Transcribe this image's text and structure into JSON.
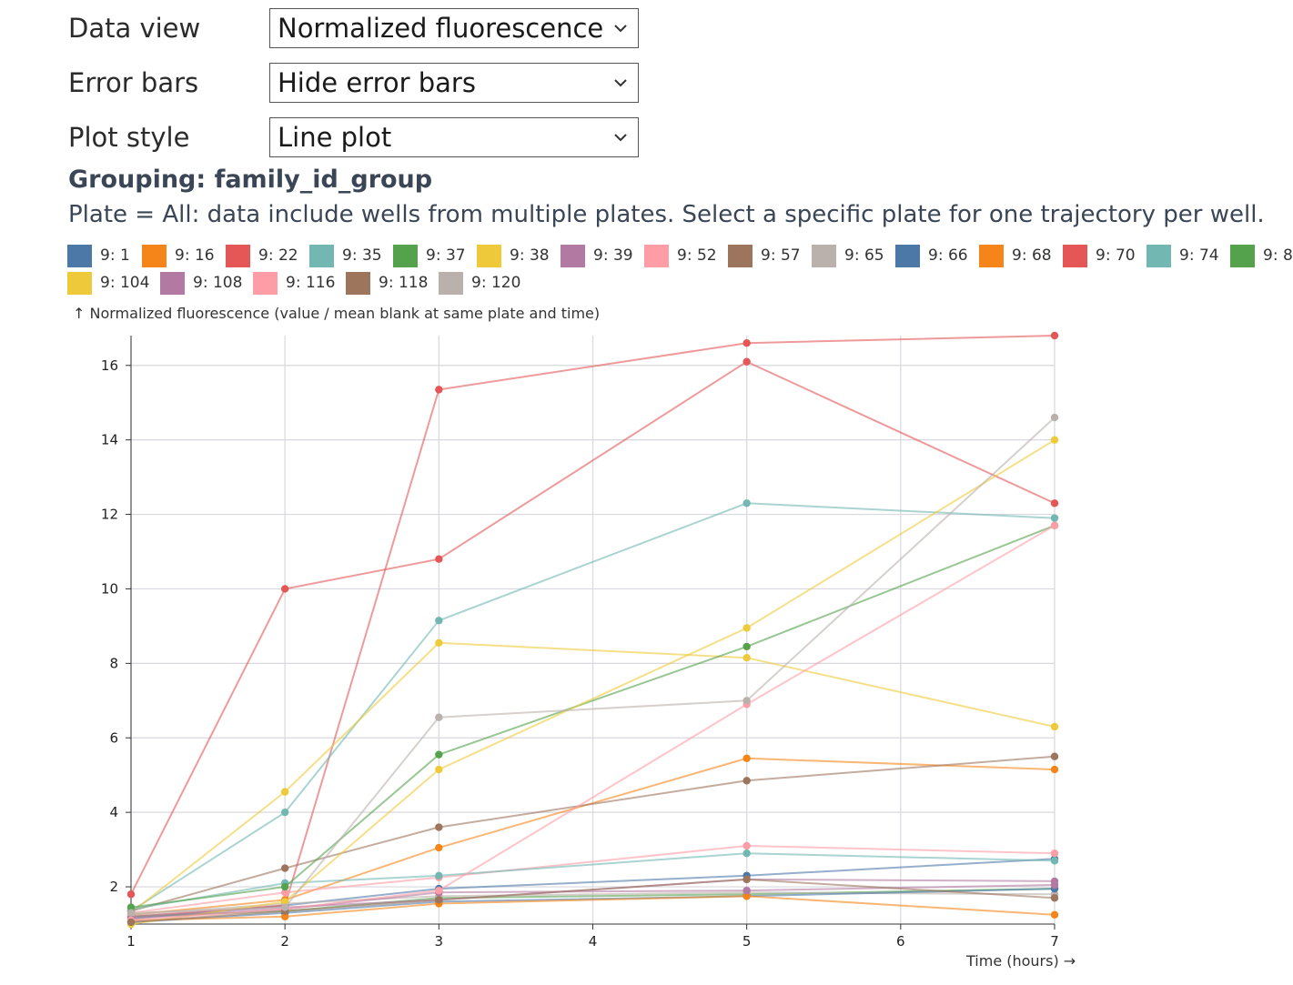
{
  "controls": [
    {
      "label": "Data view",
      "value": "Normalized fluorescence"
    },
    {
      "label": "Error bars",
      "value": "Hide error bars"
    },
    {
      "label": "Plot style",
      "value": "Line plot"
    }
  ],
  "grouping_title": "Grouping: family_id_group",
  "plate_note": "Plate = All: data include wells from multiple plates. Select a specific plate for one trajectory per well.",
  "chart_data": {
    "type": "line",
    "title": "",
    "ylabel": "↑ Normalized fluorescence (value / mean blank at same plate and time)",
    "xlabel": "Time (hours) →",
    "x_ticks": [
      1,
      2,
      3,
      4,
      5,
      6,
      7
    ],
    "y_ticks": [
      2,
      4,
      6,
      8,
      10,
      12,
      14,
      16
    ],
    "xlim": [
      1,
      7
    ],
    "ylim": [
      1,
      16.8
    ],
    "grid": true,
    "legend_position": "top",
    "series": [
      {
        "name": "9: 1",
        "color": "#4c78a8",
        "x": [
          1,
          2,
          3,
          5,
          7
        ],
        "values": [
          1.15,
          1.5,
          1.95,
          2.3,
          2.75
        ]
      },
      {
        "name": "9: 16",
        "color": "#f58518",
        "x": [
          1,
          2,
          3,
          5,
          7
        ],
        "values": [
          1.25,
          1.65,
          3.05,
          5.45,
          5.15
        ]
      },
      {
        "name": "9: 22",
        "color": "#e45756",
        "x": [
          1,
          2,
          3,
          5,
          7
        ],
        "values": [
          1.2,
          1.5,
          15.35,
          16.6,
          16.8
        ]
      },
      {
        "name": "9: 35",
        "color": "#72b7b2",
        "x": [
          1,
          2,
          3,
          5,
          7
        ],
        "values": [
          1.35,
          4.0,
          9.15,
          12.3,
          11.9
        ]
      },
      {
        "name": "9: 37",
        "color": "#54a24b",
        "x": [
          1,
          2,
          3,
          5,
          7
        ],
        "values": [
          1.2,
          1.35,
          1.7,
          1.8,
          1.95
        ]
      },
      {
        "name": "9: 38",
        "color": "#eeca3b",
        "x": [
          1,
          2,
          3,
          5,
          7
        ],
        "values": [
          1.3,
          4.55,
          8.55,
          8.15,
          6.3
        ]
      },
      {
        "name": "9: 39",
        "color": "#b279a2",
        "x": [
          1,
          2,
          3,
          5,
          7
        ],
        "values": [
          1.2,
          1.45,
          1.65,
          2.2,
          2.15
        ]
      },
      {
        "name": "9: 52",
        "color": "#ff9da6",
        "x": [
          1,
          2,
          3,
          5,
          7
        ],
        "values": [
          1.3,
          1.85,
          2.25,
          3.1,
          2.9
        ]
      },
      {
        "name": "9: 57",
        "color": "#9d755d",
        "x": [
          1,
          2,
          3,
          5,
          7
        ],
        "values": [
          1.35,
          2.5,
          3.6,
          4.85,
          5.5
        ]
      },
      {
        "name": "9: 65",
        "color": "#bab0ac",
        "x": [
          1,
          2,
          3,
          5,
          7
        ],
        "values": [
          1.25,
          1.55,
          1.75,
          1.85,
          1.8
        ]
      },
      {
        "name": "9: 66",
        "color": "#4c78a8",
        "x": [
          1,
          2,
          3,
          5,
          7
        ],
        "values": [
          1.05,
          1.3,
          1.6,
          1.75,
          1.95
        ]
      },
      {
        "name": "9: 68",
        "color": "#f58518",
        "x": [
          1,
          2,
          3,
          5,
          7
        ],
        "values": [
          1.1,
          1.2,
          1.55,
          1.75,
          1.25
        ]
      },
      {
        "name": "9: 70",
        "color": "#e45756",
        "x": [
          1,
          2,
          3,
          5,
          7
        ],
        "values": [
          1.8,
          10.0,
          10.8,
          16.1,
          12.3
        ]
      },
      {
        "name": "9: 74",
        "color": "#72b7b2",
        "x": [
          1,
          2,
          3,
          5,
          7
        ],
        "values": [
          1.4,
          2.1,
          2.3,
          2.9,
          2.7
        ]
      },
      {
        "name": "9: 8",
        "color": "#54a24b",
        "x": [
          1,
          2,
          3,
          5,
          7
        ],
        "values": [
          1.45,
          2.0,
          5.55,
          8.45,
          11.7
        ]
      },
      {
        "name": "9: 104",
        "color": "#eeca3b",
        "x": [
          1,
          2,
          3,
          5,
          7
        ],
        "values": [
          1.0,
          1.6,
          5.15,
          8.95,
          14.0
        ]
      },
      {
        "name": "9: 108",
        "color": "#b279a2",
        "x": [
          1,
          2,
          3,
          5,
          7
        ],
        "values": [
          1.15,
          1.4,
          1.85,
          1.9,
          2.05
        ]
      },
      {
        "name": "9: 116",
        "color": "#ff9da6",
        "x": [
          1,
          2,
          3,
          5,
          7
        ],
        "values": [
          1.1,
          1.4,
          1.9,
          6.9,
          11.7
        ]
      },
      {
        "name": "9: 118",
        "color": "#9d755d",
        "x": [
          1,
          2,
          3,
          5,
          7
        ],
        "values": [
          1.05,
          1.35,
          1.65,
          2.2,
          1.7
        ]
      },
      {
        "name": "9: 120",
        "color": "#bab0ac",
        "x": [
          1,
          2,
          3,
          5,
          7
        ],
        "values": [
          1.3,
          1.45,
          6.55,
          7.0,
          14.6
        ]
      }
    ]
  }
}
